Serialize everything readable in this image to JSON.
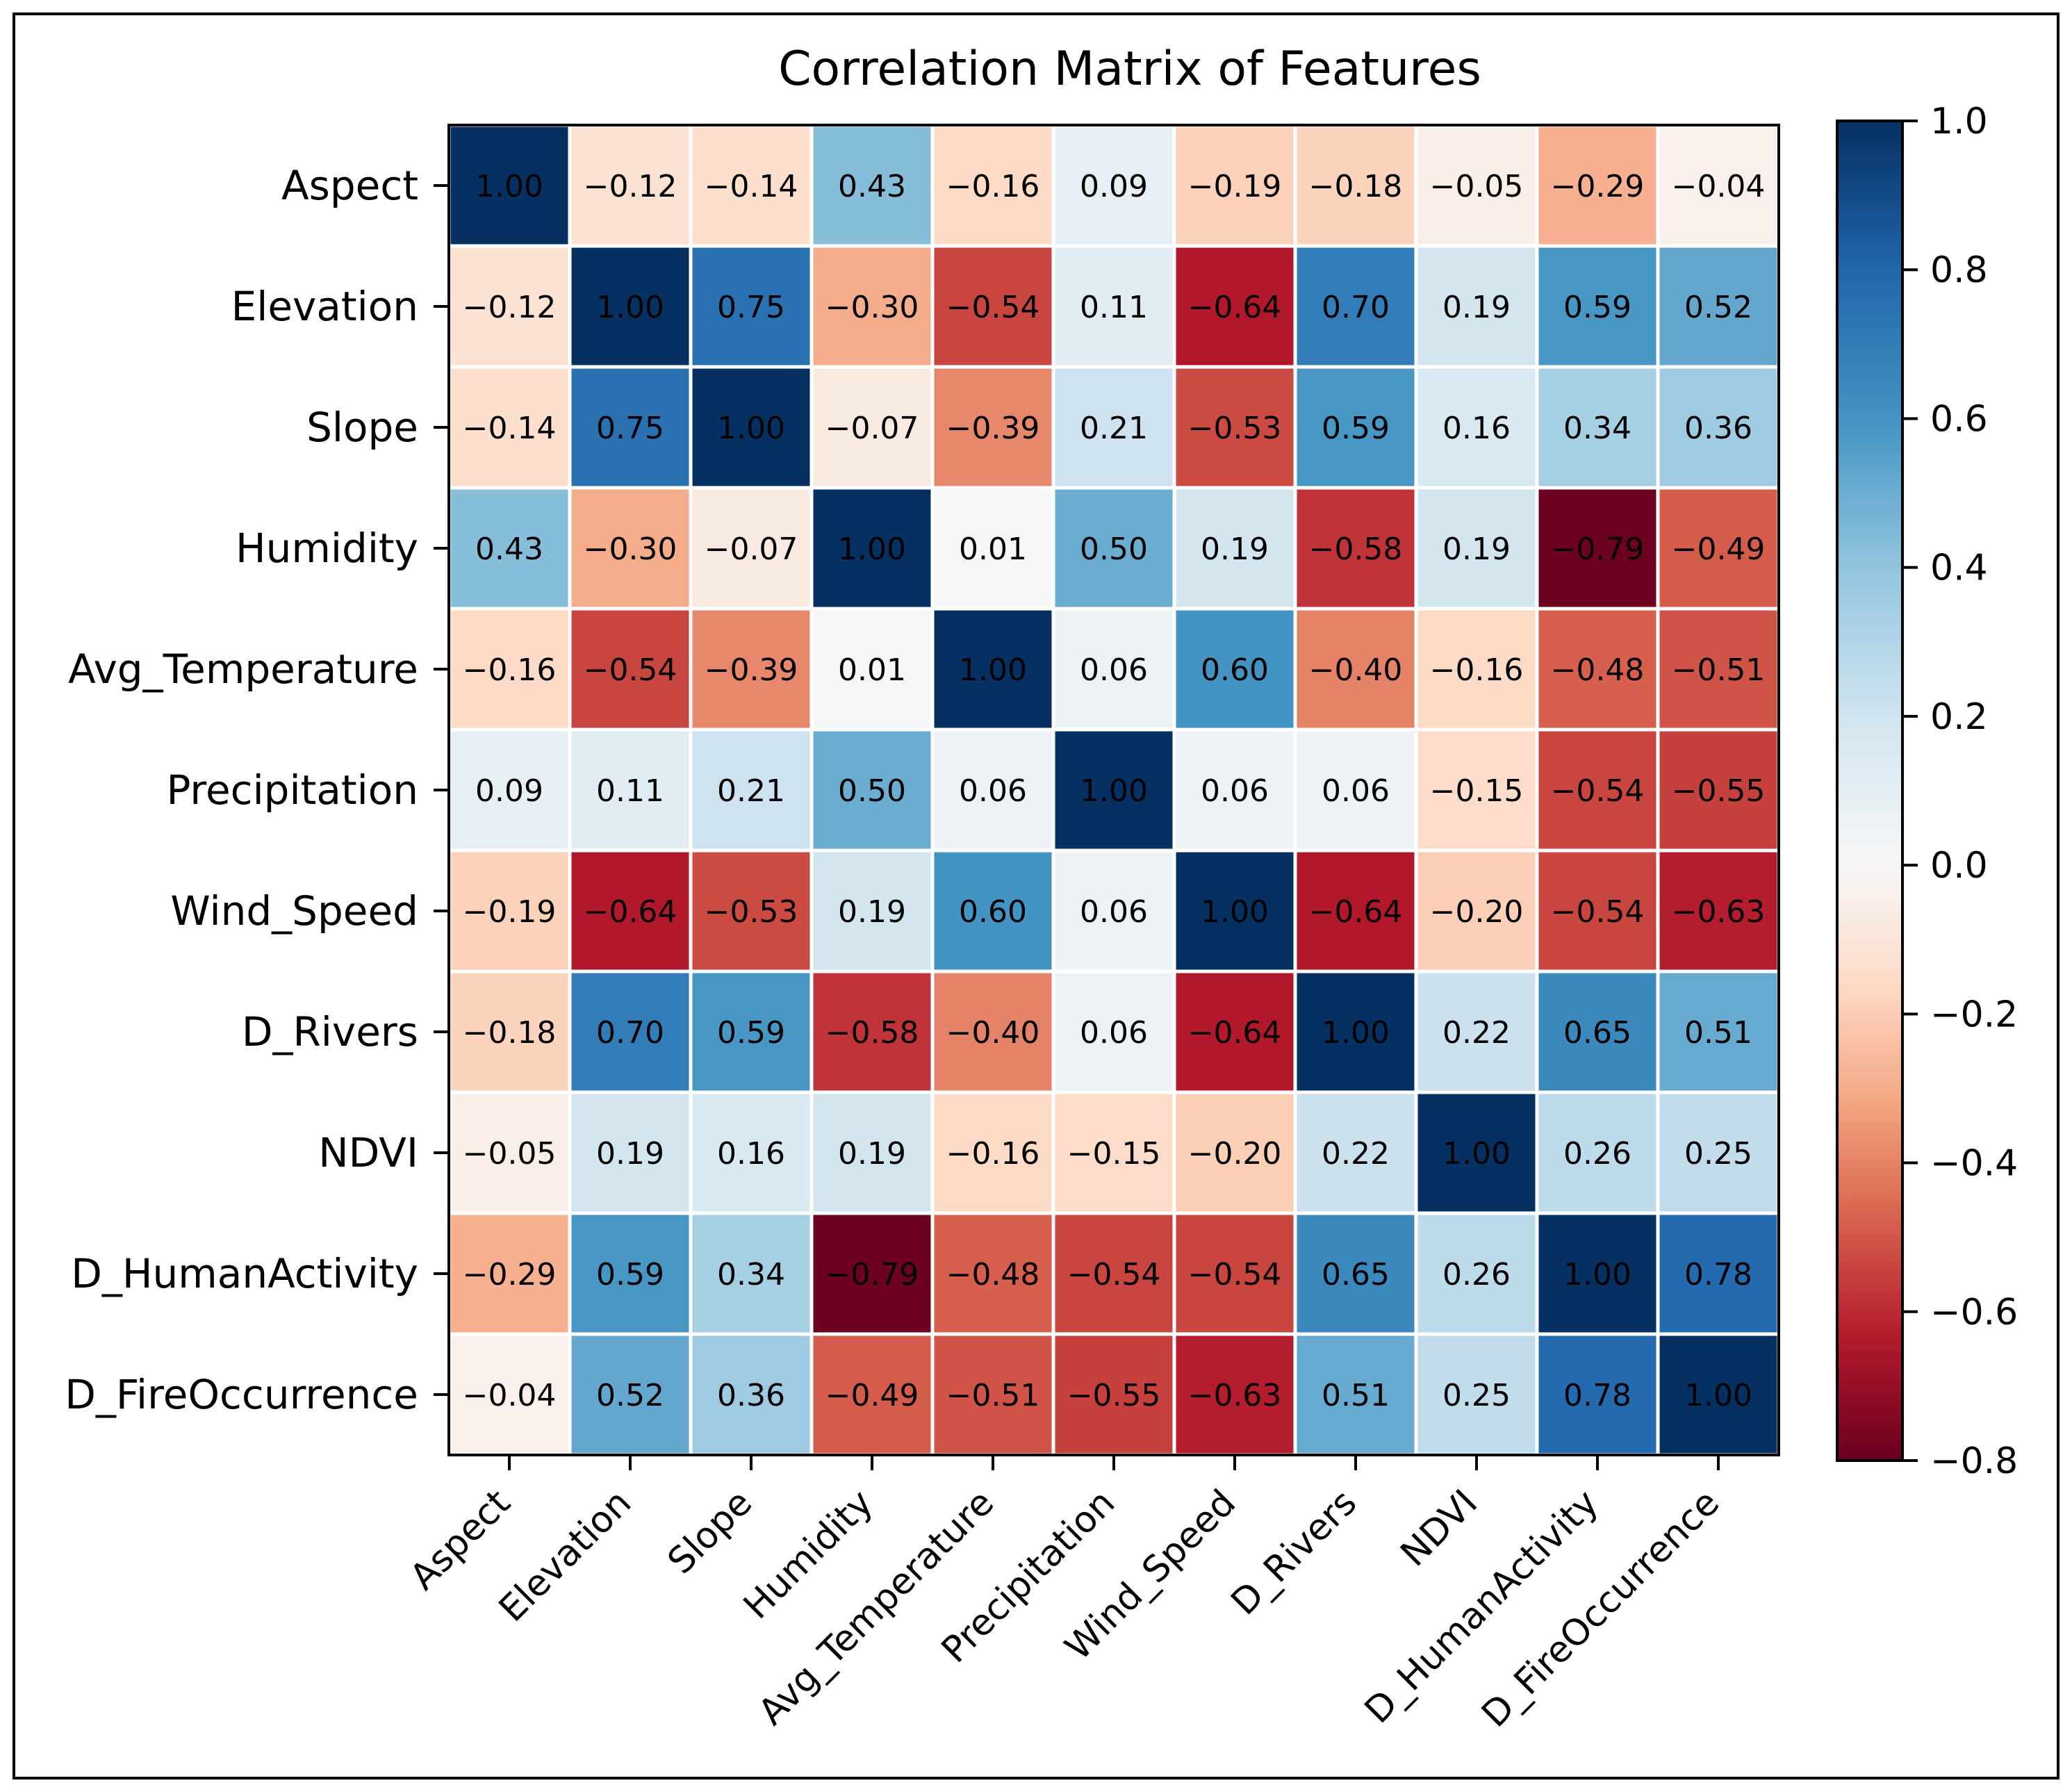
{
  "chart_data": {
    "type": "heatmap",
    "title": "Correlation Matrix of Features",
    "xlabel": "",
    "ylabel": "",
    "labels": [
      "Aspect",
      "Elevation",
      "Slope",
      "Humidity",
      "Avg_Temperature",
      "Precipitation",
      "Wind_Speed",
      "D_Rivers",
      "NDVI",
      "D_HumanActivity",
      "D_FireOccurrence"
    ],
    "matrix": [
      [
        1.0,
        -0.12,
        -0.14,
        0.43,
        -0.16,
        0.09,
        -0.19,
        -0.18,
        -0.05,
        -0.29,
        -0.04
      ],
      [
        -0.12,
        1.0,
        0.75,
        -0.3,
        -0.54,
        0.11,
        -0.64,
        0.7,
        0.19,
        0.59,
        0.52
      ],
      [
        -0.14,
        0.75,
        1.0,
        -0.07,
        -0.39,
        0.21,
        -0.53,
        0.59,
        0.16,
        0.34,
        0.36
      ],
      [
        0.43,
        -0.3,
        -0.07,
        1.0,
        0.01,
        0.5,
        0.19,
        -0.58,
        0.19,
        -0.79,
        -0.49
      ],
      [
        -0.16,
        -0.54,
        -0.39,
        0.01,
        1.0,
        0.06,
        0.6,
        -0.4,
        -0.16,
        -0.48,
        -0.51
      ],
      [
        0.09,
        0.11,
        0.21,
        0.5,
        0.06,
        1.0,
        0.06,
        0.06,
        -0.15,
        -0.54,
        -0.55
      ],
      [
        -0.19,
        -0.64,
        -0.53,
        0.19,
        0.6,
        0.06,
        1.0,
        -0.64,
        -0.2,
        -0.54,
        -0.63
      ],
      [
        -0.18,
        0.7,
        0.59,
        -0.58,
        -0.4,
        0.06,
        -0.64,
        1.0,
        0.22,
        0.65,
        0.51
      ],
      [
        -0.05,
        0.19,
        0.16,
        0.19,
        -0.16,
        -0.15,
        -0.2,
        0.22,
        1.0,
        0.26,
        0.25
      ],
      [
        -0.29,
        0.59,
        0.34,
        -0.79,
        -0.48,
        -0.54,
        -0.54,
        0.65,
        0.26,
        1.0,
        0.78
      ],
      [
        -0.04,
        0.52,
        0.36,
        -0.49,
        -0.51,
        -0.55,
        -0.63,
        0.51,
        0.25,
        0.78,
        1.0
      ]
    ],
    "value_format": "2 decimals, unicode minus",
    "colormap": "RdBu",
    "colorbar": {
      "vmin": -0.8,
      "vmax": 1.0,
      "center": 0.0,
      "ticks": [
        1.0,
        0.8,
        0.6,
        0.4,
        0.2,
        0.0,
        -0.2,
        -0.4,
        -0.6,
        -0.8
      ],
      "tick_labels": [
        "1.0",
        "0.8",
        "0.6",
        "0.4",
        "0.2",
        "0.0",
        "−0.2",
        "−0.4",
        "−0.6",
        "−0.8"
      ],
      "placement": "right"
    },
    "x_tick_rotation": 45,
    "grid": false,
    "colors": {
      "neg_stops": [
        "#67001f",
        "#b2182b",
        "#d6604d",
        "#f4a582",
        "#fddbc7",
        "#f7f7f7"
      ],
      "pos_stops": [
        "#f7f7f7",
        "#d1e5f0",
        "#92c5de",
        "#4393c3",
        "#2166ac",
        "#053061"
      ],
      "cell_border": "#ffffff",
      "text": "#000000"
    }
  }
}
